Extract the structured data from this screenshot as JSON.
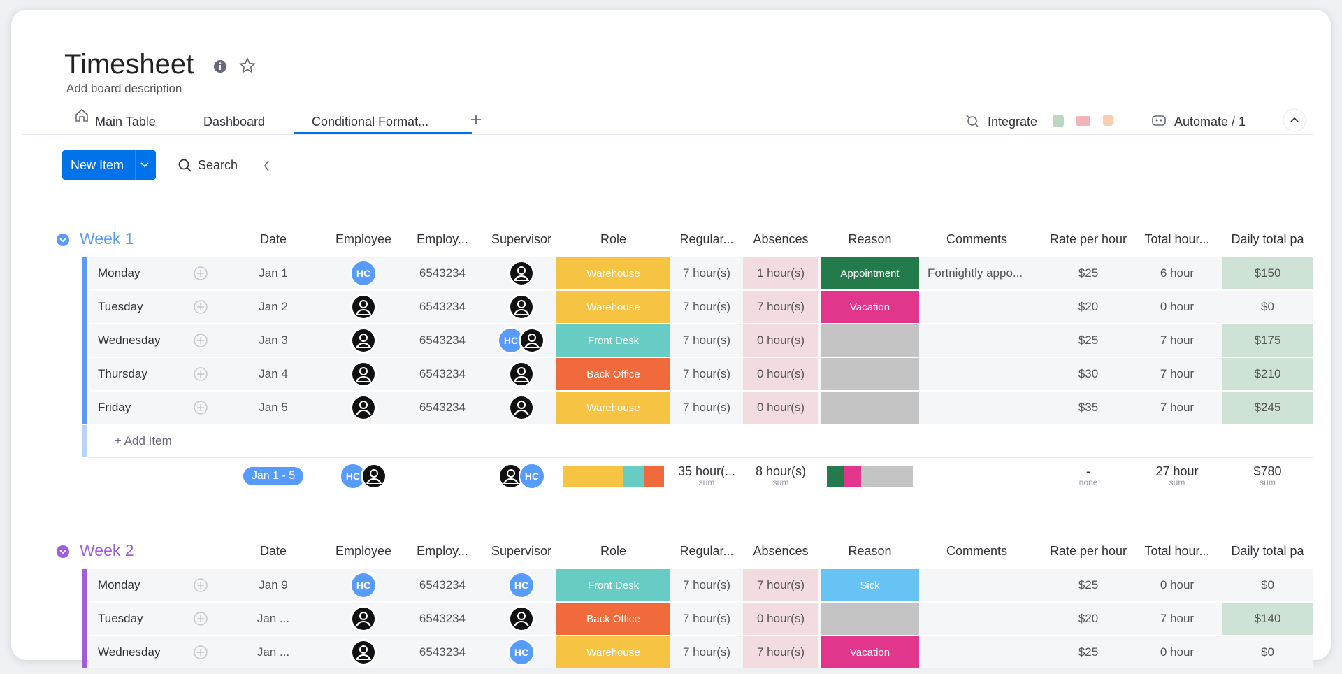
{
  "header": {
    "title": "Timesheet",
    "description": "Add board description"
  },
  "tabs": [
    "Main Table",
    "Dashboard",
    "Conditional Format..."
  ],
  "toolbar": {
    "integrate": "Integrate",
    "automate": "Automate / 1",
    "new_item": "New Item",
    "search": "Search"
  },
  "columns": [
    "Date",
    "Employee",
    "Employ...",
    "Supervisor",
    "Role",
    "Regular...",
    "Absences",
    "Reason",
    "Comments",
    "Rate per hour",
    "Total hour...",
    "Daily total pa"
  ],
  "groups": [
    {
      "name": "Week 1",
      "color": "#579bfc",
      "rows": [
        {
          "day": "Monday",
          "date": "Jan 1",
          "employee": [
            "HC"
          ],
          "employee_id": "6543234",
          "supervisor": [
            {
              "icon": "person"
            }
          ],
          "role": {
            "label": "Warehouse",
            "color": "#f7c342"
          },
          "regular": "7 hour(s)",
          "absences": "1 hour(s)",
          "reason": {
            "label": "Appointment",
            "color": "#237a4b"
          },
          "comments": "Fortnightly appo...",
          "rate": "$25",
          "total": "6 hour",
          "daily": "$150",
          "daily_highlight": true
        },
        {
          "day": "Tuesday",
          "date": "Jan 2",
          "employee": [
            {
              "icon": "person"
            }
          ],
          "employee_id": "6543234",
          "supervisor": [
            {
              "icon": "person"
            }
          ],
          "role": {
            "label": "Warehouse",
            "color": "#f7c342"
          },
          "regular": "7 hour(s)",
          "absences": "7 hour(s)",
          "reason": {
            "label": "Vacation",
            "color": "#e2368d"
          },
          "rate": "$20",
          "total": "0 hour",
          "daily": "$0"
        },
        {
          "day": "Wednesday",
          "date": "Jan 3",
          "employee": [
            {
              "icon": "person"
            }
          ],
          "employee_id": "6543234",
          "supervisor": [
            "HC",
            {
              "icon": "person"
            }
          ],
          "role": {
            "label": "Front Desk",
            "color": "#66ccc4"
          },
          "regular": "7 hour(s)",
          "absences": "0 hour(s)",
          "rate": "$25",
          "total": "7 hour",
          "daily": "$175",
          "daily_highlight": true
        },
        {
          "day": "Thursday",
          "date": "Jan 4",
          "employee": [
            {
              "icon": "person"
            }
          ],
          "employee_id": "6543234",
          "supervisor": [
            {
              "icon": "person"
            }
          ],
          "role": {
            "label": "Back Office",
            "color": "#f06a3c"
          },
          "regular": "7 hour(s)",
          "absences": "0 hour(s)",
          "rate": "$30",
          "total": "7 hour",
          "daily": "$210",
          "daily_highlight": true
        },
        {
          "day": "Friday",
          "date": "Jan 5",
          "employee": [
            {
              "icon": "person"
            }
          ],
          "employee_id": "6543234",
          "supervisor": [
            {
              "icon": "person"
            }
          ],
          "role": {
            "label": "Warehouse",
            "color": "#f7c342"
          },
          "regular": "7 hour(s)",
          "absences": "0 hour(s)",
          "rate": "$35",
          "total": "7 hour",
          "daily": "$245",
          "daily_highlight": true
        }
      ],
      "add_item": "+ Add Item",
      "summary": {
        "date_range": "Jan 1 - 5",
        "employee": [
          "HC",
          {
            "icon": "person"
          }
        ],
        "supervisor": [
          {
            "icon": "person"
          },
          "HC"
        ],
        "role_segments": [
          {
            "color": "#f7c342",
            "count": 3
          },
          {
            "color": "#66ccc4",
            "count": 1
          },
          {
            "color": "#f06a3c",
            "count": 1
          }
        ],
        "reason_segments": [
          {
            "color": "#237a4b",
            "count": 1
          },
          {
            "color": "#e2368d",
            "count": 1
          },
          {
            "color": "#c4c4c4",
            "count": 3
          }
        ],
        "regular": {
          "value": "35 hour(...",
          "label": "sum"
        },
        "absences": {
          "value": "8 hour(s)",
          "label": "sum"
        },
        "rate": {
          "value": "-",
          "label": "none"
        },
        "total": {
          "value": "27 hour",
          "label": "sum"
        },
        "daily": {
          "value": "$780",
          "label": "sum"
        }
      }
    },
    {
      "name": "Week 2",
      "color": "#a25ddc",
      "rows": [
        {
          "day": "Monday",
          "date": "Jan 9",
          "employee": [
            "HC"
          ],
          "employee_id": "6543234",
          "supervisor": [
            "HC"
          ],
          "role": {
            "label": "Front Desk",
            "color": "#66ccc4"
          },
          "regular": "7 hour(s)",
          "absences": "7 hour(s)",
          "reason": {
            "label": "Sick",
            "color": "#68c3f5"
          },
          "rate": "$25",
          "total": "0 hour",
          "daily": "$0"
        },
        {
          "day": "Tuesday",
          "date": "Jan ...",
          "employee": [
            {
              "icon": "person"
            }
          ],
          "employee_id": "6543234",
          "supervisor": [
            {
              "icon": "person"
            }
          ],
          "role": {
            "label": "Back Office",
            "color": "#f06a3c"
          },
          "regular": "7 hour(s)",
          "absences": "0 hour(s)",
          "rate": "$20",
          "total": "7 hour",
          "daily": "$140",
          "daily_highlight": true
        },
        {
          "day": "Wednesday",
          "date": "Jan ...",
          "employee": [
            {
              "icon": "person"
            }
          ],
          "employee_id": "6543234",
          "supervisor": [
            "HC"
          ],
          "role": {
            "label": "Warehouse",
            "color": "#f7c342"
          },
          "regular": "7 hour(s)",
          "absences": "7 hour(s)",
          "reason": {
            "label": "Vacation",
            "color": "#e2368d"
          },
          "rate": "$25",
          "total": "0 hour",
          "daily": "$0"
        }
      ]
    }
  ]
}
